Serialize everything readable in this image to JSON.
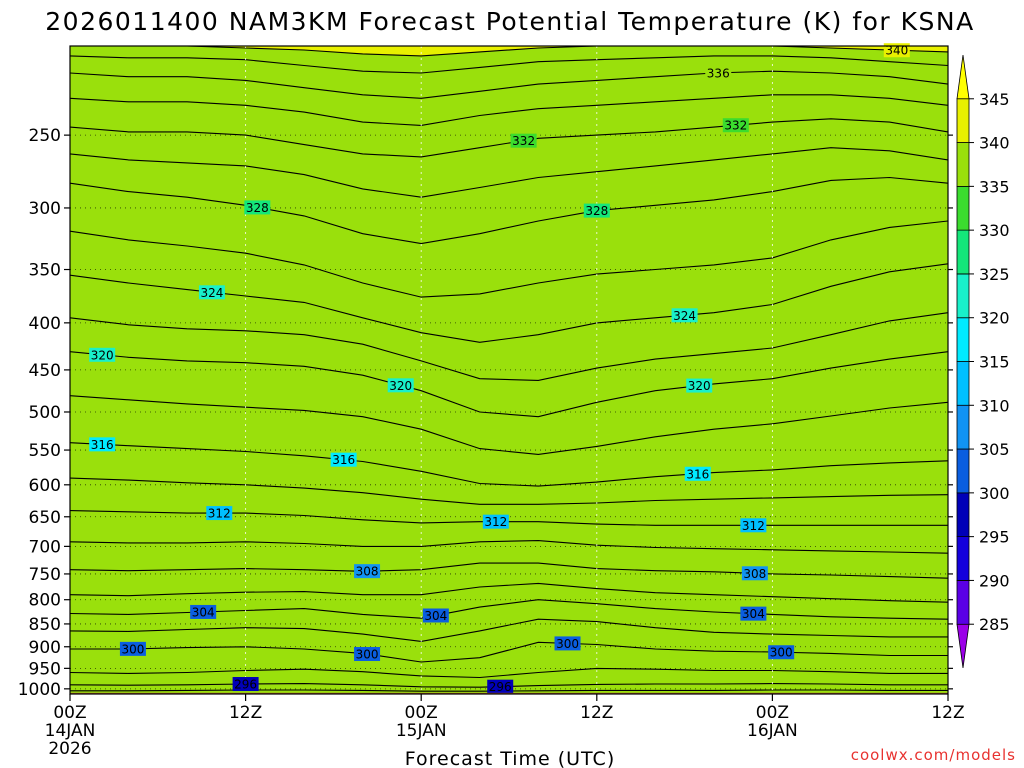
{
  "chart_data": {
    "type": "heatmap",
    "title": "2026011400 NAM3KM Forecast Potential Temperature (K) for KSNA",
    "xlabel": "Forecast Time (UTC)",
    "ylabel": "",
    "units": "K",
    "credit": "coolwx.com/models",
    "x_range_hours": [
      0,
      60
    ],
    "x_ticks": [
      {
        "hour": 0,
        "labels": [
          "00Z",
          "14JAN",
          "2026"
        ]
      },
      {
        "hour": 12,
        "labels": [
          "12Z"
        ]
      },
      {
        "hour": 24,
        "labels": [
          "00Z",
          "15JAN"
        ]
      },
      {
        "hour": 36,
        "labels": [
          "12Z"
        ]
      },
      {
        "hour": 48,
        "labels": [
          "00Z",
          "16JAN"
        ]
      },
      {
        "hour": 60,
        "labels": [
          "12Z"
        ]
      }
    ],
    "y_ticks_hPa": [
      250,
      300,
      350,
      400,
      450,
      500,
      550,
      600,
      650,
      700,
      750,
      800,
      850,
      900,
      950,
      1000
    ],
    "y_range_hPa": [
      200,
      1013
    ],
    "y_scale": "log-pressure (inverted)",
    "grid": true,
    "colorbar": {
      "levels": [
        285,
        290,
        295,
        300,
        305,
        310,
        315,
        320,
        325,
        330,
        335,
        340,
        345
      ],
      "colors": [
        "#9b00e8",
        "#5a00e6",
        "#1400dc",
        "#0000b8",
        "#0a5ee0",
        "#1193f3",
        "#00c0ff",
        "#00eaff",
        "#19f0ca",
        "#14e67a",
        "#3bdc2e",
        "#9ae00c",
        "#e8f000",
        "#ffff00"
      ]
    },
    "time_hours": [
      0,
      4,
      8,
      12,
      16,
      20,
      24,
      28,
      32,
      36,
      40,
      44,
      48,
      52,
      56,
      60
    ],
    "contour_interval_K": 2,
    "label_interval_K": 4,
    "pressure_of_theta_hPa": [
      {
        "theta": 294,
        "p": [
          1005,
          1005,
          1004,
          1003,
          1003,
          1004,
          1006,
          1006,
          1005,
          1004,
          1004,
          1004,
          1003,
          1003,
          1004,
          1004
        ]
      },
      {
        "theta": 296,
        "p": [
          990,
          991,
          990,
          988,
          987,
          990,
          995,
          996,
          992,
          989,
          988,
          988,
          987,
          988,
          990,
          990
        ]
      },
      {
        "theta": 298,
        "p": [
          960,
          962,
          960,
          955,
          952,
          958,
          968,
          972,
          960,
          950,
          952,
          955,
          955,
          958,
          962,
          962
        ]
      },
      {
        "theta": 300,
        "p": [
          905,
          905,
          902,
          900,
          905,
          915,
          935,
          925,
          890,
          895,
          905,
          910,
          912,
          915,
          920,
          920
        ]
      },
      {
        "theta": 302,
        "p": [
          865,
          866,
          862,
          858,
          860,
          872,
          888,
          865,
          840,
          845,
          858,
          868,
          872,
          875,
          878,
          878
        ]
      },
      {
        "theta": 304,
        "p": [
          828,
          830,
          826,
          822,
          818,
          830,
          838,
          815,
          800,
          808,
          818,
          825,
          830,
          835,
          838,
          840
        ]
      },
      {
        "theta": 306,
        "p": [
          790,
          792,
          788,
          785,
          784,
          790,
          790,
          775,
          768,
          778,
          786,
          790,
          794,
          798,
          802,
          805
        ]
      },
      {
        "theta": 308,
        "p": [
          742,
          744,
          742,
          740,
          742,
          745,
          742,
          730,
          730,
          740,
          744,
          746,
          750,
          752,
          755,
          758
        ]
      },
      {
        "theta": 310,
        "p": [
          692,
          694,
          694,
          692,
          695,
          700,
          700,
          692,
          690,
          698,
          702,
          704,
          706,
          708,
          710,
          712
        ]
      },
      {
        "theta": 312,
        "p": [
          640,
          642,
          644,
          644,
          648,
          655,
          660,
          658,
          658,
          662,
          664,
          664,
          664,
          664,
          664,
          664
        ]
      },
      {
        "theta": 314,
        "p": [
          590,
          593,
          597,
          600,
          605,
          612,
          622,
          630,
          630,
          628,
          624,
          622,
          620,
          618,
          616,
          615
        ]
      },
      {
        "theta": 316,
        "p": [
          540,
          544,
          548,
          552,
          558,
          566,
          580,
          598,
          602,
          596,
          588,
          582,
          578,
          572,
          568,
          565
        ]
      },
      {
        "theta": 318,
        "p": [
          480,
          485,
          490,
          494,
          498,
          506,
          522,
          548,
          556,
          545,
          532,
          522,
          515,
          505,
          495,
          488
        ]
      },
      {
        "theta": 320,
        "p": [
          430,
          436,
          440,
          442,
          446,
          456,
          474,
          500,
          506,
          488,
          474,
          466,
          460,
          448,
          438,
          430
        ]
      },
      {
        "theta": 322,
        "p": [
          395,
          402,
          406,
          408,
          412,
          422,
          440,
          460,
          462,
          448,
          438,
          432,
          426,
          412,
          398,
          390
        ]
      },
      {
        "theta": 324,
        "p": [
          355,
          362,
          368,
          374,
          380,
          395,
          410,
          420,
          412,
          400,
          395,
          390,
          382,
          365,
          352,
          345
        ]
      },
      {
        "theta": 326,
        "p": [
          318,
          325,
          330,
          336,
          346,
          362,
          375,
          372,
          362,
          354,
          350,
          346,
          340,
          325,
          315,
          310
        ]
      },
      {
        "theta": 328,
        "p": [
          282,
          288,
          292,
          298,
          306,
          320,
          328,
          320,
          310,
          302,
          298,
          294,
          288,
          280,
          278,
          282
        ]
      },
      {
        "theta": 330,
        "p": [
          262,
          266,
          268,
          270,
          276,
          286,
          292,
          285,
          278,
          274,
          270,
          266,
          262,
          258,
          260,
          266
        ]
      },
      {
        "theta": 332,
        "p": [
          245,
          248,
          248,
          250,
          256,
          262,
          264,
          258,
          252,
          250,
          248,
          245,
          242,
          240,
          242,
          248
        ]
      },
      {
        "theta": 334,
        "p": [
          228,
          230,
          230,
          232,
          236,
          242,
          244,
          238,
          234,
          232,
          230,
          228,
          226,
          226,
          228,
          232
        ]
      },
      {
        "theta": 336,
        "p": [
          214,
          216,
          216,
          218,
          222,
          226,
          228,
          224,
          220,
          218,
          216,
          214,
          213,
          214,
          216,
          220
        ]
      },
      {
        "theta": 338,
        "p": [
          205,
          206,
          206,
          207,
          210,
          213,
          214,
          211,
          208,
          207,
          206,
          205,
          205,
          206,
          208,
          210
        ]
      },
      {
        "theta": 340,
        "p": [
          200,
          200,
          200,
          201,
          202,
          204,
          205,
          203,
          201,
          200,
          200,
          200,
          200,
          201,
          202,
          203
        ]
      }
    ],
    "contour_labels": [
      {
        "theta": 340,
        "hour": 56.5
      },
      {
        "theta": 336,
        "hour": 44.3
      },
      {
        "theta": 332,
        "hour": 31.0
      },
      {
        "theta": 332,
        "hour": 45.5
      },
      {
        "theta": 328,
        "hour": 12.8
      },
      {
        "theta": 328,
        "hour": 36.0
      },
      {
        "theta": 324,
        "hour": 9.7
      },
      {
        "theta": 324,
        "hour": 42.0
      },
      {
        "theta": 320,
        "hour": 2.2
      },
      {
        "theta": 320,
        "hour": 22.6
      },
      {
        "theta": 320,
        "hour": 43.0
      },
      {
        "theta": 316,
        "hour": 2.2
      },
      {
        "theta": 316,
        "hour": 18.7
      },
      {
        "theta": 316,
        "hour": 42.9
      },
      {
        "theta": 312,
        "hour": 10.2
      },
      {
        "theta": 312,
        "hour": 29.1
      },
      {
        "theta": 312,
        "hour": 46.7
      },
      {
        "theta": 308,
        "hour": 20.3
      },
      {
        "theta": 308,
        "hour": 46.8
      },
      {
        "theta": 304,
        "hour": 9.1
      },
      {
        "theta": 304,
        "hour": 25.0
      },
      {
        "theta": 304,
        "hour": 46.7
      },
      {
        "theta": 300,
        "hour": 4.3
      },
      {
        "theta": 300,
        "hour": 20.3
      },
      {
        "theta": 300,
        "hour": 34.0
      },
      {
        "theta": 300,
        "hour": 48.6
      },
      {
        "theta": 296,
        "hour": 12.0
      },
      {
        "theta": 296,
        "hour": 29.4
      }
    ],
    "ground_color": "#a0522d"
  }
}
